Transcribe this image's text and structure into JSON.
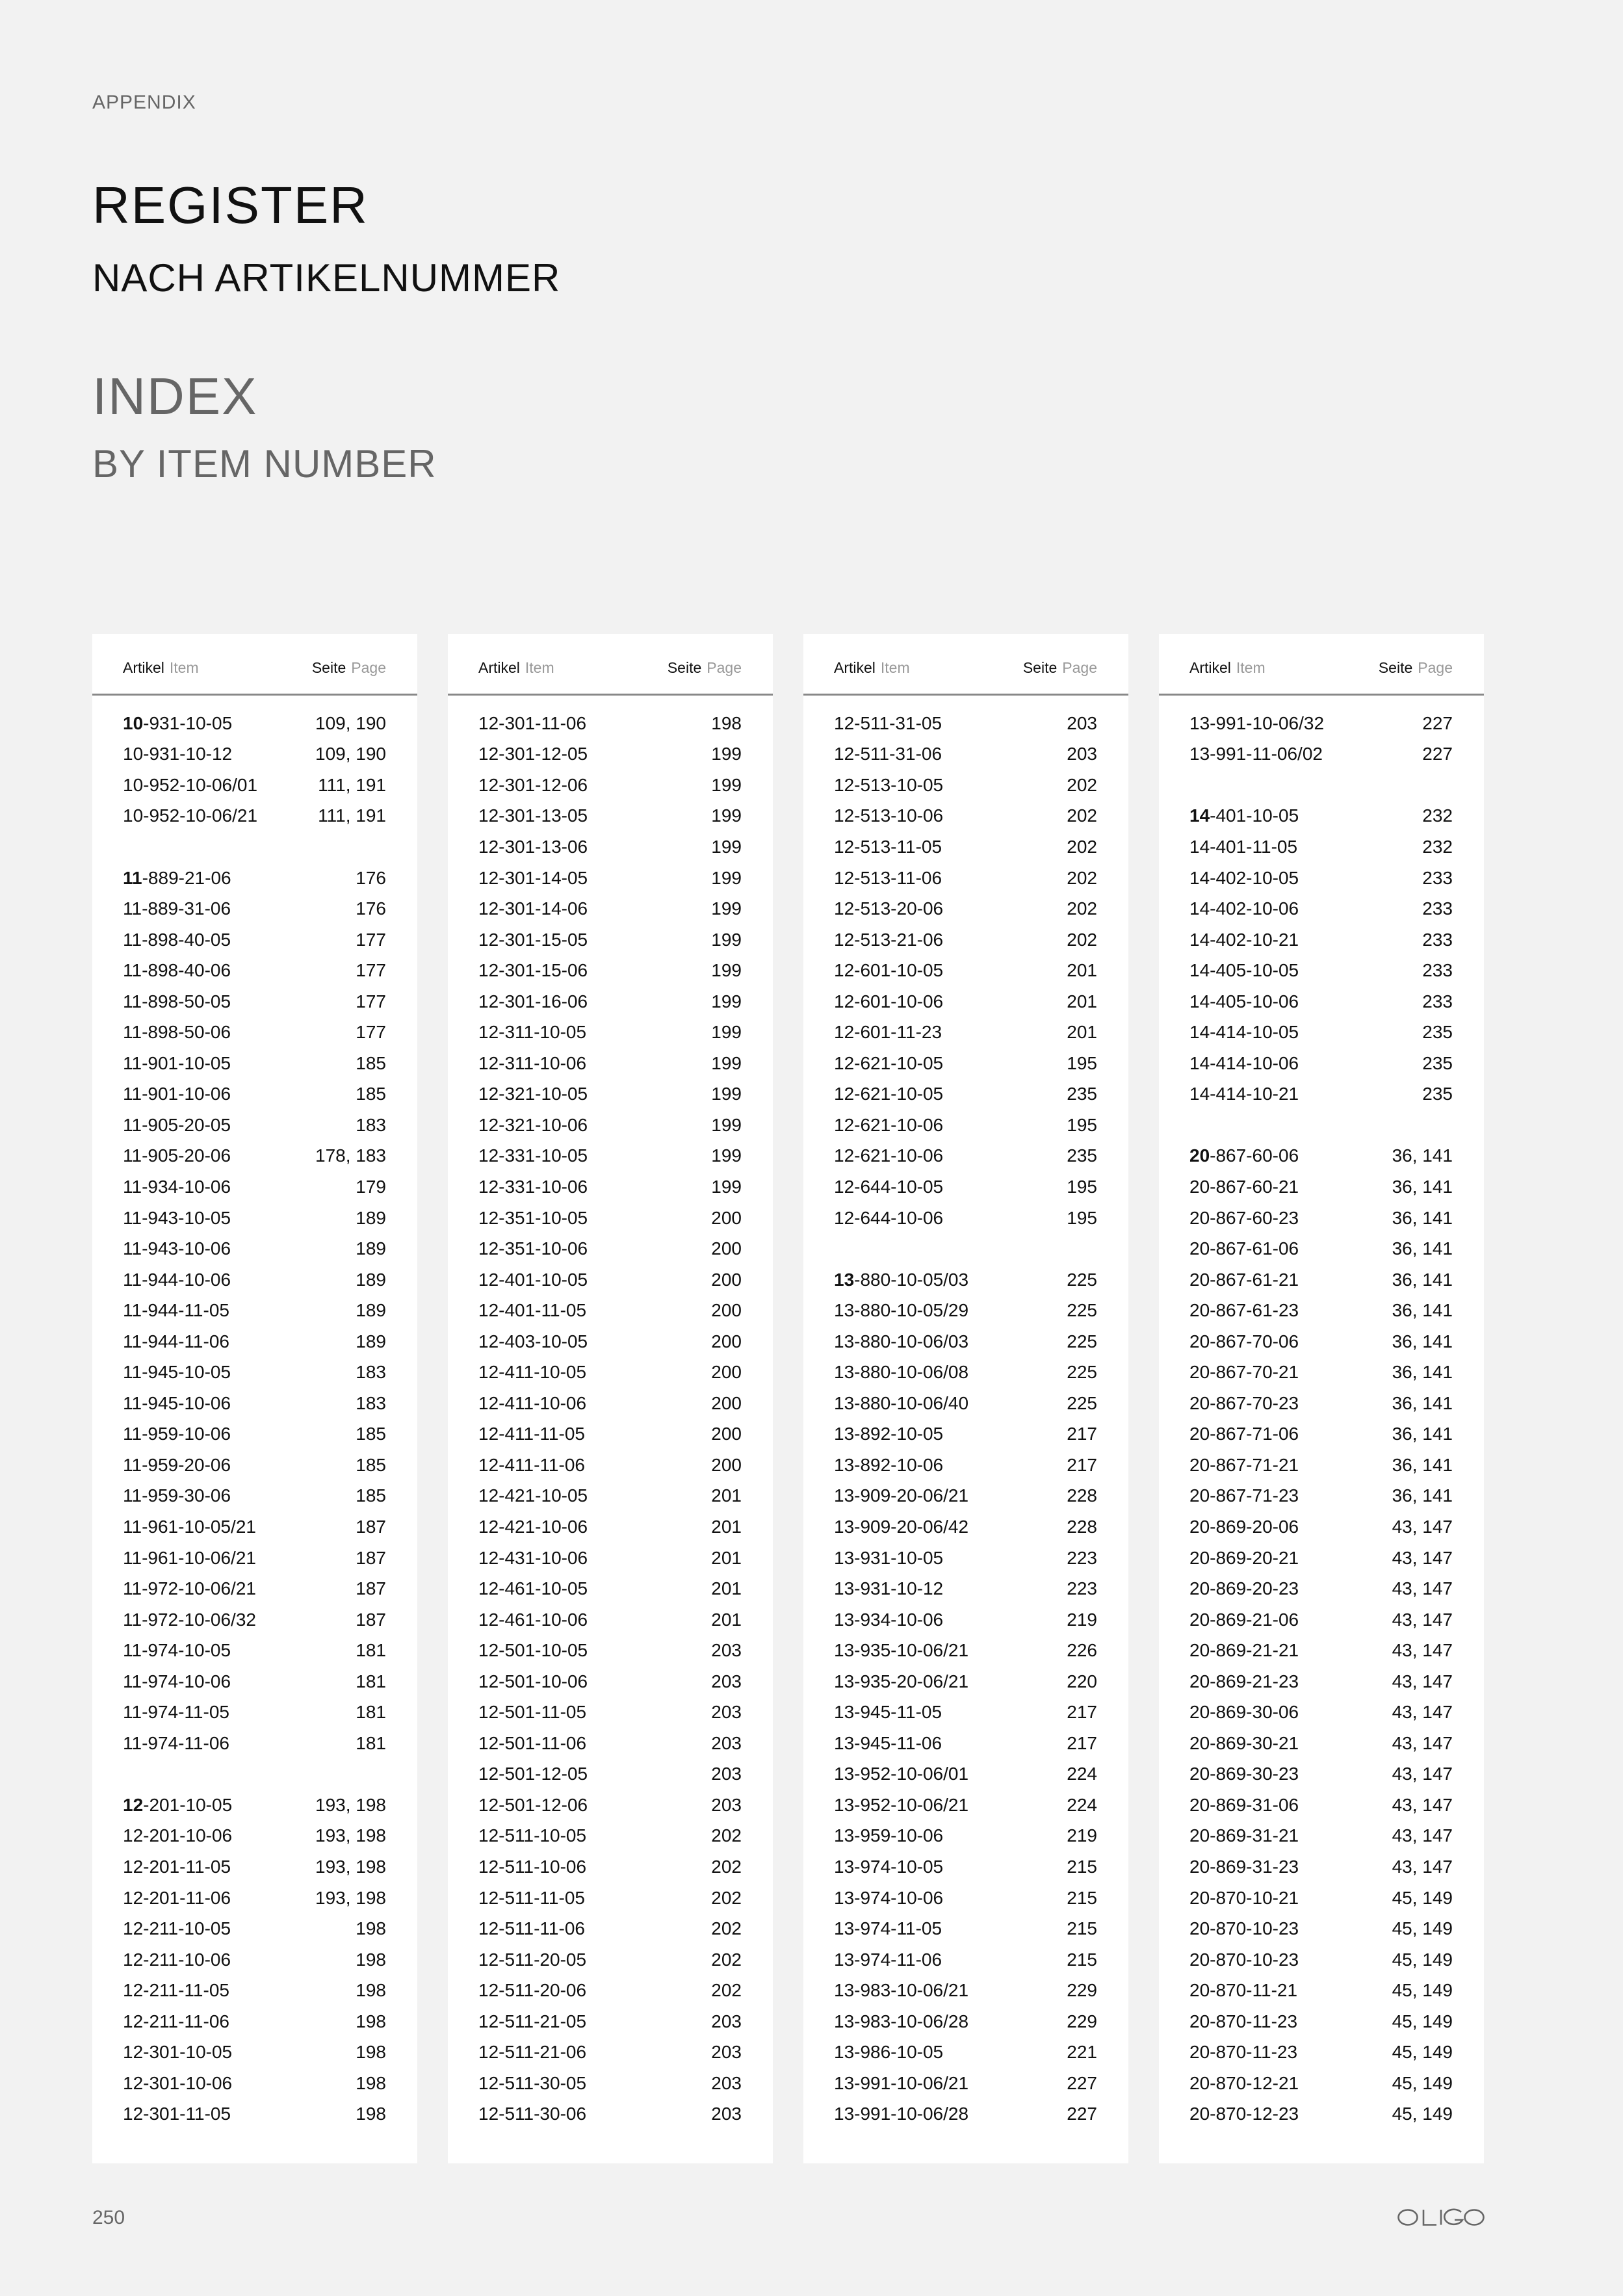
{
  "header": {
    "section": "APPENDIX",
    "title_de": "REGISTER",
    "subtitle_de": "NACH ARTIKELNUMMER",
    "title_en": "INDEX",
    "subtitle_en": "BY ITEM NUMBER"
  },
  "table_header": {
    "item_de": "Artikel",
    "item_en": "Item",
    "page_de": "Seite",
    "page_en": "Page"
  },
  "columns": [
    [
      {
        "item": "10-931-10-05",
        "page": "109, 190",
        "group": true
      },
      {
        "item": "10-931-10-12",
        "page": "109, 190"
      },
      {
        "item": "10-952-10-06/01",
        "page": "111, 191"
      },
      {
        "item": "10-952-10-06/21",
        "page": "111, 191"
      },
      {},
      {
        "item": "11-889-21-06",
        "page": "176",
        "group": true
      },
      {
        "item": "11-889-31-06",
        "page": "176"
      },
      {
        "item": "11-898-40-05",
        "page": "177"
      },
      {
        "item": "11-898-40-06",
        "page": "177"
      },
      {
        "item": "11-898-50-05",
        "page": "177"
      },
      {
        "item": "11-898-50-06",
        "page": "177"
      },
      {
        "item": "11-901-10-05",
        "page": "185"
      },
      {
        "item": "11-901-10-06",
        "page": "185"
      },
      {
        "item": "11-905-20-05",
        "page": "183"
      },
      {
        "item": "11-905-20-06",
        "page": "178, 183"
      },
      {
        "item": "11-934-10-06",
        "page": "179"
      },
      {
        "item": "11-943-10-05",
        "page": "189"
      },
      {
        "item": "11-943-10-06",
        "page": "189"
      },
      {
        "item": "11-944-10-06",
        "page": "189"
      },
      {
        "item": "11-944-11-05",
        "page": "189"
      },
      {
        "item": "11-944-11-06",
        "page": "189"
      },
      {
        "item": "11-945-10-05",
        "page": "183"
      },
      {
        "item": "11-945-10-06",
        "page": "183"
      },
      {
        "item": "11-959-10-06",
        "page": "185"
      },
      {
        "item": "11-959-20-06",
        "page": "185"
      },
      {
        "item": "11-959-30-06",
        "page": "185"
      },
      {
        "item": "11-961-10-05/21",
        "page": "187"
      },
      {
        "item": "11-961-10-06/21",
        "page": "187"
      },
      {
        "item": "11-972-10-06/21",
        "page": "187"
      },
      {
        "item": "11-972-10-06/32",
        "page": "187"
      },
      {
        "item": "11-974-10-05",
        "page": "181"
      },
      {
        "item": "11-974-10-06",
        "page": "181"
      },
      {
        "item": "11-974-11-05",
        "page": "181"
      },
      {
        "item": "11-974-11-06",
        "page": "181"
      },
      {},
      {
        "item": "12-201-10-05",
        "page": "193, 198",
        "group": true
      },
      {
        "item": "12-201-10-06",
        "page": "193, 198"
      },
      {
        "item": "12-201-11-05",
        "page": "193, 198"
      },
      {
        "item": "12-201-11-06",
        "page": "193, 198"
      },
      {
        "item": "12-211-10-05",
        "page": "198"
      },
      {
        "item": "12-211-10-06",
        "page": "198"
      },
      {
        "item": "12-211-11-05",
        "page": "198"
      },
      {
        "item": "12-211-11-06",
        "page": "198"
      },
      {
        "item": "12-301-10-05",
        "page": "198"
      },
      {
        "item": "12-301-10-06",
        "page": "198"
      },
      {
        "item": "12-301-11-05",
        "page": "198"
      }
    ],
    [
      {
        "item": "12-301-11-06",
        "page": "198"
      },
      {
        "item": "12-301-12-05",
        "page": "199"
      },
      {
        "item": "12-301-12-06",
        "page": "199"
      },
      {
        "item": "12-301-13-05",
        "page": "199"
      },
      {
        "item": "12-301-13-06",
        "page": "199"
      },
      {
        "item": "12-301-14-05",
        "page": "199"
      },
      {
        "item": "12-301-14-06",
        "page": "199"
      },
      {
        "item": "12-301-15-05",
        "page": "199"
      },
      {
        "item": "12-301-15-06",
        "page": "199"
      },
      {
        "item": "12-301-16-06",
        "page": "199"
      },
      {
        "item": "12-311-10-05",
        "page": "199"
      },
      {
        "item": "12-311-10-06",
        "page": "199"
      },
      {
        "item": "12-321-10-05",
        "page": "199"
      },
      {
        "item": "12-321-10-06",
        "page": "199"
      },
      {
        "item": "12-331-10-05",
        "page": "199"
      },
      {
        "item": "12-331-10-06",
        "page": "199"
      },
      {
        "item": "12-351-10-05",
        "page": "200"
      },
      {
        "item": "12-351-10-06",
        "page": "200"
      },
      {
        "item": "12-401-10-05",
        "page": "200"
      },
      {
        "item": "12-401-11-05",
        "page": "200"
      },
      {
        "item": "12-403-10-05",
        "page": "200"
      },
      {
        "item": "12-411-10-05",
        "page": "200"
      },
      {
        "item": "12-411-10-06",
        "page": "200"
      },
      {
        "item": "12-411-11-05",
        "page": "200"
      },
      {
        "item": "12-411-11-06",
        "page": "200"
      },
      {
        "item": "12-421-10-05",
        "page": "201"
      },
      {
        "item": "12-421-10-06",
        "page": "201"
      },
      {
        "item": "12-431-10-06",
        "page": "201"
      },
      {
        "item": "12-461-10-05",
        "page": "201"
      },
      {
        "item": "12-461-10-06",
        "page": "201"
      },
      {
        "item": "12-501-10-05",
        "page": "203"
      },
      {
        "item": "12-501-10-06",
        "page": "203"
      },
      {
        "item": "12-501-11-05",
        "page": "203"
      },
      {
        "item": "12-501-11-06",
        "page": "203"
      },
      {
        "item": "12-501-12-05",
        "page": "203"
      },
      {
        "item": "12-501-12-06",
        "page": "203"
      },
      {
        "item": "12-511-10-05",
        "page": "202"
      },
      {
        "item": "12-511-10-06",
        "page": "202"
      },
      {
        "item": "12-511-11-05",
        "page": "202"
      },
      {
        "item": "12-511-11-06",
        "page": "202"
      },
      {
        "item": "12-511-20-05",
        "page": "202"
      },
      {
        "item": "12-511-20-06",
        "page": "202"
      },
      {
        "item": "12-511-21-05",
        "page": "203"
      },
      {
        "item": "12-511-21-06",
        "page": "203"
      },
      {
        "item": "12-511-30-05",
        "page": "203"
      },
      {
        "item": "12-511-30-06",
        "page": "203"
      }
    ],
    [
      {
        "item": "12-511-31-05",
        "page": "203"
      },
      {
        "item": "12-511-31-06",
        "page": "203"
      },
      {
        "item": "12-513-10-05",
        "page": "202"
      },
      {
        "item": "12-513-10-06",
        "page": "202"
      },
      {
        "item": "12-513-11-05",
        "page": "202"
      },
      {
        "item": "12-513-11-06",
        "page": "202"
      },
      {
        "item": "12-513-20-06",
        "page": "202"
      },
      {
        "item": "12-513-21-06",
        "page": "202"
      },
      {
        "item": "12-601-10-05",
        "page": "201"
      },
      {
        "item": "12-601-10-06",
        "page": "201"
      },
      {
        "item": "12-601-11-23",
        "page": "201"
      },
      {
        "item": "12-621-10-05",
        "page": "195"
      },
      {
        "item": "12-621-10-05",
        "page": "235"
      },
      {
        "item": "12-621-10-06",
        "page": "195"
      },
      {
        "item": "12-621-10-06",
        "page": "235"
      },
      {
        "item": "12-644-10-05",
        "page": "195"
      },
      {
        "item": "12-644-10-06",
        "page": "195"
      },
      {},
      {
        "item": "13-880-10-05/03",
        "page": "225",
        "group": true
      },
      {
        "item": "13-880-10-05/29",
        "page": "225"
      },
      {
        "item": "13-880-10-06/03",
        "page": "225"
      },
      {
        "item": "13-880-10-06/08",
        "page": "225"
      },
      {
        "item": "13-880-10-06/40",
        "page": "225"
      },
      {
        "item": "13-892-10-05",
        "page": "217"
      },
      {
        "item": "13-892-10-06",
        "page": "217"
      },
      {
        "item": "13-909-20-06/21",
        "page": "228"
      },
      {
        "item": "13-909-20-06/42",
        "page": "228"
      },
      {
        "item": "13-931-10-05",
        "page": "223"
      },
      {
        "item": "13-931-10-12",
        "page": "223"
      },
      {
        "item": "13-934-10-06",
        "page": "219"
      },
      {
        "item": "13-935-10-06/21",
        "page": "226"
      },
      {
        "item": "13-935-20-06/21",
        "page": "220"
      },
      {
        "item": "13-945-11-05",
        "page": "217"
      },
      {
        "item": "13-945-11-06",
        "page": "217"
      },
      {
        "item": "13-952-10-06/01",
        "page": "224"
      },
      {
        "item": "13-952-10-06/21",
        "page": "224"
      },
      {
        "item": "13-959-10-06",
        "page": "219"
      },
      {
        "item": "13-974-10-05",
        "page": "215"
      },
      {
        "item": "13-974-10-06",
        "page": "215"
      },
      {
        "item": "13-974-11-05",
        "page": "215"
      },
      {
        "item": "13-974-11-06",
        "page": "215"
      },
      {
        "item": "13-983-10-06/21",
        "page": "229"
      },
      {
        "item": "13-983-10-06/28",
        "page": "229"
      },
      {
        "item": "13-986-10-05",
        "page": "221"
      },
      {
        "item": "13-991-10-06/21",
        "page": "227"
      },
      {
        "item": "13-991-10-06/28",
        "page": "227"
      }
    ],
    [
      {
        "item": "13-991-10-06/32",
        "page": "227"
      },
      {
        "item": "13-991-11-06/02",
        "page": "227"
      },
      {},
      {
        "item": "14-401-10-05",
        "page": "232",
        "group": true
      },
      {
        "item": "14-401-11-05",
        "page": "232"
      },
      {
        "item": "14-402-10-05",
        "page": "233"
      },
      {
        "item": "14-402-10-06",
        "page": "233"
      },
      {
        "item": "14-402-10-21",
        "page": "233"
      },
      {
        "item": "14-405-10-05",
        "page": "233"
      },
      {
        "item": "14-405-10-06",
        "page": "233"
      },
      {
        "item": "14-414-10-05",
        "page": "235"
      },
      {
        "item": "14-414-10-06",
        "page": "235"
      },
      {
        "item": "14-414-10-21",
        "page": "235"
      },
      {},
      {
        "item": "20-867-60-06",
        "page": "36, 141",
        "group": true
      },
      {
        "item": "20-867-60-21",
        "page": "36, 141"
      },
      {
        "item": "20-867-60-23",
        "page": "36, 141"
      },
      {
        "item": "20-867-61-06",
        "page": "36, 141"
      },
      {
        "item": "20-867-61-21",
        "page": "36, 141"
      },
      {
        "item": "20-867-61-23",
        "page": "36, 141"
      },
      {
        "item": "20-867-70-06",
        "page": "36, 141"
      },
      {
        "item": "20-867-70-21",
        "page": "36, 141"
      },
      {
        "item": "20-867-70-23",
        "page": "36, 141"
      },
      {
        "item": "20-867-71-06",
        "page": "36, 141"
      },
      {
        "item": "20-867-71-21",
        "page": "36, 141"
      },
      {
        "item": "20-867-71-23",
        "page": "36, 141"
      },
      {
        "item": "20-869-20-06",
        "page": "43, 147"
      },
      {
        "item": "20-869-20-21",
        "page": "43, 147"
      },
      {
        "item": "20-869-20-23",
        "page": "43, 147"
      },
      {
        "item": "20-869-21-06",
        "page": "43, 147"
      },
      {
        "item": "20-869-21-21",
        "page": "43, 147"
      },
      {
        "item": "20-869-21-23",
        "page": "43, 147"
      },
      {
        "item": "20-869-30-06",
        "page": "43, 147"
      },
      {
        "item": "20-869-30-21",
        "page": "43, 147"
      },
      {
        "item": "20-869-30-23",
        "page": "43, 147"
      },
      {
        "item": "20-869-31-06",
        "page": "43, 147"
      },
      {
        "item": "20-869-31-21",
        "page": "43, 147"
      },
      {
        "item": "20-869-31-23",
        "page": "43, 147"
      },
      {
        "item": "20-870-10-21",
        "page": "45, 149"
      },
      {
        "item": "20-870-10-23",
        "page": "45, 149"
      },
      {
        "item": "20-870-10-23",
        "page": "45, 149"
      },
      {
        "item": "20-870-11-21",
        "page": "45, 149"
      },
      {
        "item": "20-870-11-23",
        "page": "45, 149"
      },
      {
        "item": "20-870-11-23",
        "page": "45, 149"
      },
      {
        "item": "20-870-12-21",
        "page": "45, 149"
      },
      {
        "item": "20-870-12-23",
        "page": "45, 149"
      }
    ]
  ],
  "footer": {
    "page_number": "250",
    "brand": "OLIGO"
  },
  "colors": {
    "background": "#f2f2f2",
    "panel": "#ffffff",
    "text": "#111111",
    "muted": "#666666"
  }
}
